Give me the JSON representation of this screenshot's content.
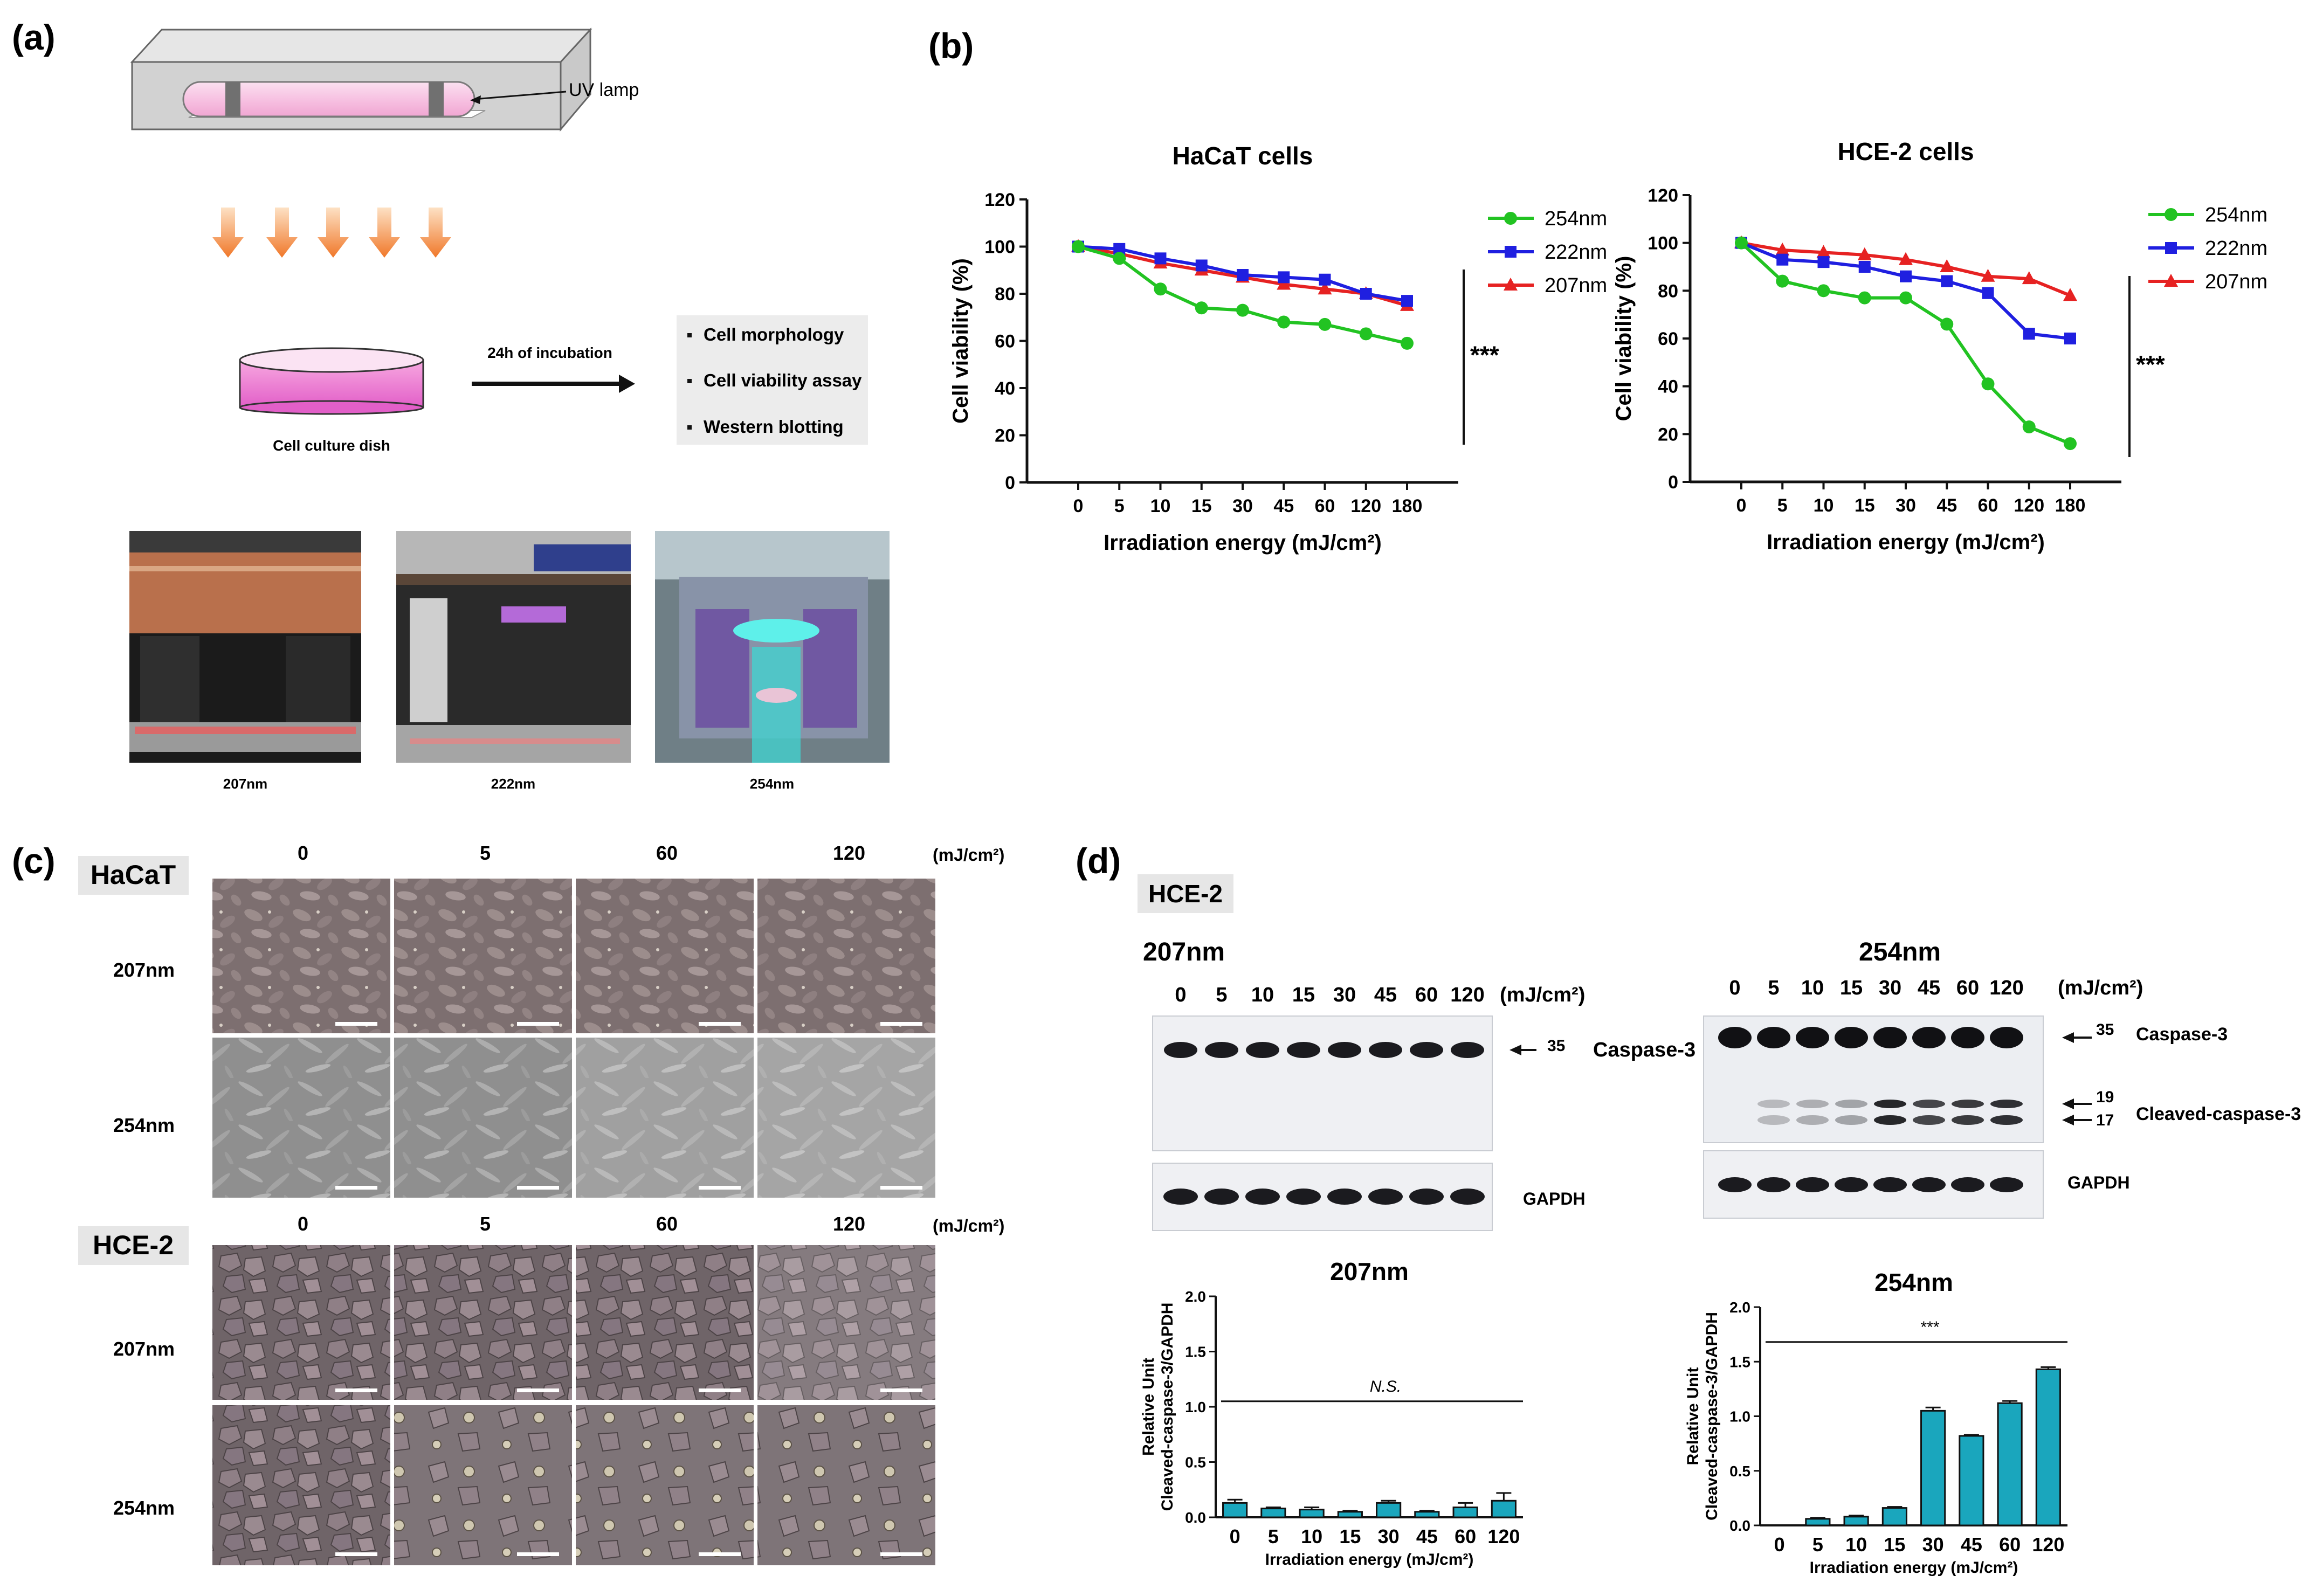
{
  "panels": {
    "a": {
      "label": "(a)",
      "lamp_label": "UV lamp",
      "incubation_label": "24h of incubation",
      "dish_label": "Cell culture dish",
      "assays": [
        "Cell morphology",
        "Cell viability assay",
        "Western blotting"
      ],
      "photo_labels": [
        "207nm",
        "222nm",
        "254nm"
      ]
    },
    "b": {
      "label": "(b)",
      "significance": "***"
    },
    "c": {
      "label": "(c)",
      "doses": [
        "0",
        "5",
        "60",
        "120"
      ],
      "unit": "(mJ/cm²)",
      "cell_lines": [
        "HaCaT",
        "HCE-2"
      ],
      "rows": [
        "207nm",
        "254nm"
      ]
    },
    "d": {
      "label": "(d)",
      "cell_line": "HCE-2",
      "blot_207": {
        "title": "207nm",
        "doses": [
          "0",
          "5",
          "10",
          "15",
          "30",
          "45",
          "60",
          "120"
        ],
        "unit": "(mJ/cm²)",
        "markers": [
          "35"
        ],
        "band_labels": [
          "Caspase-3",
          "GAPDH"
        ]
      },
      "blot_254": {
        "title": "254nm",
        "doses": [
          "0",
          "5",
          "10",
          "15",
          "30",
          "45",
          "60",
          "120"
        ],
        "unit": "(mJ/cm²)",
        "markers": [
          "35",
          "19",
          "17"
        ],
        "band_labels": [
          "Caspase-3",
          "Cleaved-caspase-3",
          "GAPDH"
        ]
      }
    }
  },
  "chart_data": [
    {
      "id": "hacat",
      "type": "line",
      "title": "HaCaT cells",
      "xlabel": "Irradiation energy (mJ/cm²)",
      "ylabel": "Cell viability (%)",
      "categories": [
        "0",
        "5",
        "10",
        "15",
        "30",
        "45",
        "60",
        "120",
        "180"
      ],
      "ylim": [
        0,
        120
      ],
      "yticks": [
        0,
        20,
        40,
        60,
        80,
        100,
        120
      ],
      "legend_position": "top-right",
      "significance": "***",
      "series": [
        {
          "name": "254nm",
          "color": "#22c322",
          "marker": "circle",
          "values": [
            100,
            95,
            82,
            74,
            73,
            68,
            67,
            63,
            59
          ]
        },
        {
          "name": "222nm",
          "color": "#1f1fe0",
          "marker": "square",
          "values": [
            100,
            99,
            95,
            92,
            88,
            87,
            86,
            80,
            77
          ]
        },
        {
          "name": "207nm",
          "color": "#e62222",
          "marker": "triangle",
          "values": [
            100,
            97,
            93,
            90,
            87,
            84,
            82,
            80,
            75
          ]
        }
      ]
    },
    {
      "id": "hce2",
      "type": "line",
      "title": "HCE-2 cells",
      "xlabel": "Irradiation energy (mJ/cm²)",
      "ylabel": "Cell viability (%)",
      "categories": [
        "0",
        "5",
        "10",
        "15",
        "30",
        "45",
        "60",
        "120",
        "180"
      ],
      "ylim": [
        0,
        120
      ],
      "yticks": [
        0,
        20,
        40,
        60,
        80,
        100,
        120
      ],
      "legend_position": "top-right",
      "significance": "***",
      "series": [
        {
          "name": "254nm",
          "color": "#22c322",
          "marker": "circle",
          "values": [
            100,
            84,
            80,
            77,
            77,
            66,
            41,
            23,
            16
          ]
        },
        {
          "name": "222nm",
          "color": "#1f1fe0",
          "marker": "square",
          "values": [
            100,
            93,
            92,
            90,
            86,
            84,
            79,
            62,
            60
          ]
        },
        {
          "name": "207nm",
          "color": "#e62222",
          "marker": "triangle",
          "values": [
            100,
            97,
            96,
            95,
            93,
            90,
            86,
            85,
            78
          ]
        }
      ]
    },
    {
      "id": "bar207",
      "type": "bar",
      "title": "207nm",
      "xlabel": "Irradiation energy (mJ/cm²)",
      "ylabel": "Relative Unit Cleaved-caspase-3/GAPDH",
      "categories": [
        "0",
        "5",
        "10",
        "15",
        "30",
        "45",
        "60",
        "120"
      ],
      "values": [
        0.13,
        0.08,
        0.07,
        0.05,
        0.13,
        0.05,
        0.09,
        0.15
      ],
      "errors": [
        0.03,
        0.01,
        0.02,
        0.01,
        0.02,
        0.01,
        0.04,
        0.07
      ],
      "ylim": [
        0,
        2.0
      ],
      "yticks": [
        "0.0",
        "0.5",
        "1.0",
        "1.5",
        "2.0"
      ],
      "annotation": "N.S.",
      "annotation_line_y": 1.05,
      "color": "#1aa6bd"
    },
    {
      "id": "bar254",
      "type": "bar",
      "title": "254nm",
      "xlabel": "Irradiation energy (mJ/cm²)",
      "ylabel": "Relative Unit Cleaved-caspase-3/GAPDH",
      "categories": [
        "0",
        "5",
        "10",
        "15",
        "30",
        "45",
        "60",
        "120"
      ],
      "values": [
        0.0,
        0.06,
        0.08,
        0.16,
        1.05,
        0.82,
        1.12,
        1.43
      ],
      "errors": [
        0.0,
        0.01,
        0.01,
        0.01,
        0.03,
        0.01,
        0.02,
        0.02
      ],
      "ylim": [
        0,
        2.0
      ],
      "yticks": [
        "0.0",
        "0.5",
        "1.0",
        "1.5",
        "2.0"
      ],
      "annotation": "***",
      "annotation_line_y": 1.68,
      "color": "#1aa6bd"
    }
  ]
}
